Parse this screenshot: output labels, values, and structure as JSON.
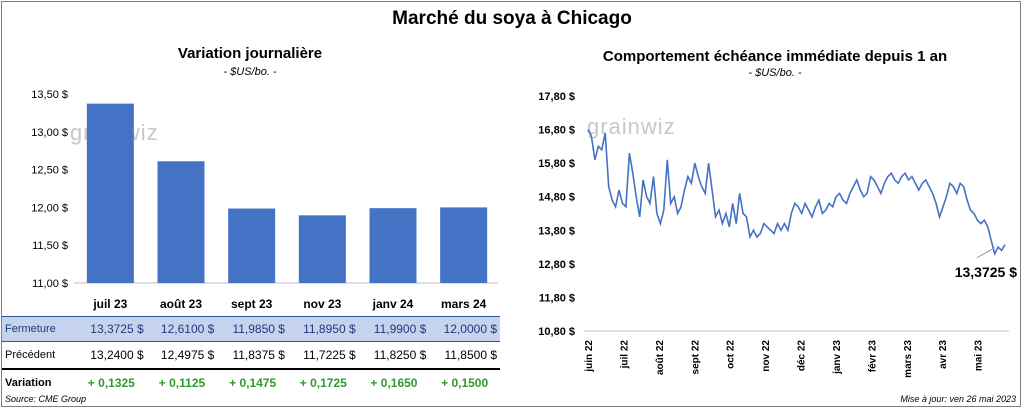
{
  "title": "Marché du soya à Chicago",
  "left_panel": {
    "title": "Variation journalière",
    "unit": "- $US/bo. -"
  },
  "right_panel": {
    "title": "Comportement échéance immédiate depuis 1 an",
    "unit": "- $US/bo. -"
  },
  "watermark": "grainwiz",
  "chart_data": [
    {
      "type": "bar",
      "title": "Variation journalière",
      "subtitle": "- $US/bo. -",
      "categories": [
        "juil 23",
        "août 23",
        "sept 23",
        "nov 23",
        "janv 24",
        "mars 24"
      ],
      "values": [
        13.3725,
        12.61,
        11.985,
        11.895,
        11.99,
        12.0
      ],
      "ylim": [
        11.0,
        13.5
      ],
      "yticks": [
        "11,00 $",
        "11,50 $",
        "12,00 $",
        "12,50 $",
        "13,00 $",
        "13,50 $"
      ],
      "grid": false,
      "color": "#4472c4"
    },
    {
      "type": "line",
      "title": "Comportement échéance immédiate depuis 1 an",
      "subtitle": "- $US/bo. -",
      "ylim": [
        10.8,
        17.8
      ],
      "yticks": [
        "10,80 $",
        "11,80 $",
        "12,80 $",
        "13,80 $",
        "14,80 $",
        "15,80 $",
        "16,80 $",
        "17,80 $"
      ],
      "xticks": [
        "juin 22",
        "juil 22",
        "août 22",
        "sept 22",
        "oct 22",
        "nov 22",
        "déc 22",
        "janv 23",
        "févr 23",
        "mars 23",
        "avr 23",
        "mai 23"
      ],
      "x_start": "2022-05-27",
      "x_end": "2023-05-26",
      "last_label": "13,3725 $",
      "last_value": 13.3725,
      "color": "#4472c4",
      "series": [
        {
          "values": [
            16.8,
            16.6,
            15.9,
            16.3,
            16.2,
            16.7,
            15.1,
            14.7,
            14.5,
            15.0,
            14.6,
            14.5,
            16.1,
            15.5,
            14.8,
            14.2,
            15.3,
            14.8,
            14.6,
            15.4,
            14.3,
            14.0,
            14.4,
            15.9,
            14.6,
            14.8,
            14.3,
            14.5,
            15.0,
            15.4,
            15.2,
            15.8,
            15.4,
            15.1,
            14.9,
            15.8,
            15.0,
            14.2,
            14.4,
            14.0,
            14.3,
            13.9,
            14.6,
            14.0,
            14.9,
            14.3,
            14.2,
            13.6,
            13.8,
            13.6,
            13.7,
            14.0,
            13.9,
            13.8,
            13.7,
            14.0,
            13.8,
            14.0,
            13.8,
            14.3,
            14.6,
            14.5,
            14.3,
            14.6,
            14.4,
            14.2,
            14.5,
            14.7,
            14.3,
            14.4,
            14.6,
            14.5,
            14.8,
            14.9,
            14.7,
            14.6,
            14.9,
            15.1,
            15.3,
            15.0,
            14.8,
            14.9,
            15.4,
            15.3,
            15.1,
            14.9,
            15.2,
            15.4,
            15.5,
            15.3,
            15.2,
            15.4,
            15.5,
            15.3,
            15.4,
            15.2,
            15.0,
            15.2,
            15.3,
            15.1,
            14.9,
            14.6,
            14.2,
            14.5,
            14.8,
            15.2,
            15.1,
            14.9,
            15.2,
            15.1,
            14.7,
            14.4,
            14.3,
            14.1,
            14.0,
            14.1,
            13.9,
            13.5,
            13.1,
            13.3,
            13.2,
            13.3725
          ]
        }
      ]
    }
  ],
  "table": {
    "rows": [
      {
        "label": "Fermeture",
        "values": [
          "13,3725  $",
          "12,6100  $",
          "11,9850  $",
          "11,8950  $",
          "11,9900  $",
          "12,0000  $"
        ]
      },
      {
        "label": "Précédent",
        "values": [
          "13,2400  $",
          "12,4975  $",
          "11,8375  $",
          "11,7225  $",
          "11,8250  $",
          "11,8500  $"
        ]
      },
      {
        "label": "Variation",
        "values": [
          "+ 0,1325",
          "+ 0,1125",
          "+ 0,1475",
          "+ 0,1725",
          "+ 0,1650",
          "+ 0,1500"
        ]
      }
    ]
  },
  "source": "Source: CME Group",
  "updated": "Mise à jour: ven 26 mai 2023"
}
